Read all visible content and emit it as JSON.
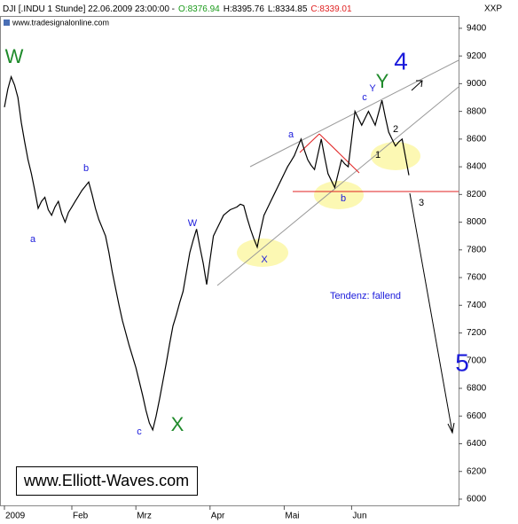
{
  "chart_data": {
    "type": "line",
    "header": {
      "symbol": "DJI [.INDU  1 Stunde] 22.06.2009 23:00:00 -",
      "open": "O:8376.94",
      "high": "H:8395.76",
      "low": "L:8334.85",
      "close": "C:8339.01"
    },
    "source": "www.tradesignalonline.com",
    "axis_label": "XXP",
    "watermark": "www.Elliott-Waves.com",
    "annotations": [
      "W",
      "a",
      "b",
      "c",
      "X",
      "W",
      "X",
      "a",
      "b",
      "c",
      "Y",
      "Y",
      "4",
      "1",
      "2",
      "3",
      "5",
      "Tendenz: fallend"
    ],
    "color": "#000000",
    "categories": [
      "2009",
      null,
      null,
      null,
      null,
      null,
      null,
      null,
      null,
      null,
      null,
      null,
      null,
      null,
      null,
      null,
      null,
      null,
      null,
      null,
      "Feb",
      null,
      null,
      null,
      null,
      null,
      null,
      null,
      null,
      null,
      null,
      null,
      null,
      null,
      null,
      null,
      null,
      null,
      null,
      "Mrz",
      null,
      null,
      null,
      null,
      null,
      null,
      null,
      null,
      null,
      null,
      null,
      null,
      null,
      null,
      null,
      null,
      null,
      null,
      null,
      null,
      null,
      "Apr",
      null,
      null,
      null,
      null,
      null,
      null,
      null,
      null,
      null,
      null,
      null,
      null,
      null,
      null,
      null,
      null,
      null,
      null,
      null,
      null,
      null,
      "Mai",
      null,
      null,
      null,
      null,
      null,
      null,
      null,
      null,
      null,
      null,
      null,
      null,
      null,
      null,
      null,
      null,
      null,
      null,
      null,
      "Jun",
      null,
      null,
      null,
      null,
      null,
      null,
      null,
      null,
      null,
      null,
      null,
      null,
      null,
      null,
      null,
      null,
      null
    ],
    "values": [
      8830,
      8960,
      9050,
      8990,
      8900,
      8720,
      8580,
      8450,
      8350,
      8230,
      8100,
      8150,
      8180,
      8090,
      8050,
      8110,
      8150,
      8060,
      8000,
      8070,
      8110,
      8150,
      8190,
      8230,
      8260,
      8290,
      8200,
      8100,
      8020,
      7960,
      7900,
      7780,
      7640,
      7520,
      7400,
      7290,
      7200,
      7110,
      7030,
      6950,
      6850,
      6750,
      6640,
      6550,
      6500,
      6600,
      6720,
      6850,
      6980,
      7120,
      7250,
      7330,
      7420,
      7500,
      7640,
      7780,
      7870,
      7950,
      7820,
      7700,
      7550,
      7730,
      7900,
      7950,
      8000,
      8050,
      8070,
      8090,
      8100,
      8110,
      8130,
      8120,
      8030,
      7950,
      7880,
      7820,
      7940,
      8050,
      8100,
      8150,
      8200,
      8250,
      8300,
      8350,
      8400,
      8440,
      8480,
      8540,
      8600,
      8520,
      8450,
      8410,
      8380,
      8490,
      8600,
      8470,
      8350,
      8300,
      8250,
      8350,
      8450,
      8420,
      8400,
      8600,
      8800,
      8750,
      8700,
      8750,
      8800,
      8750,
      8700,
      8790,
      8880,
      8760,
      8650,
      8600,
      8550,
      8580,
      8600,
      8470,
      8339.01
    ],
    "ylim": [
      5955,
      9489
    ],
    "yticks": [
      6000,
      6200,
      6400,
      6600,
      6800,
      7000,
      7200,
      7400,
      7600,
      7800,
      8000,
      8200,
      8400,
      8600,
      8800,
      9000,
      9200,
      9400
    ],
    "grid": false
  }
}
